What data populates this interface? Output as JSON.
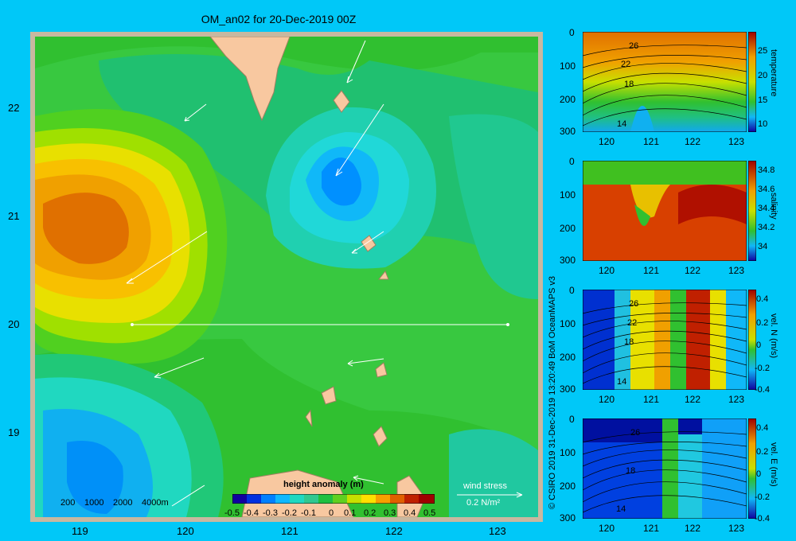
{
  "title": "OM_an02 for 20-Dec-2019 00Z",
  "map": {
    "lon_ticks": [
      "119",
      "120",
      "121",
      "122",
      "123"
    ],
    "lat_ticks": [
      "22",
      "21",
      "20",
      "19"
    ],
    "scale_labels": [
      "200",
      "1000",
      "2000",
      "4000m"
    ],
    "legend": {
      "title": "height anomaly (m)",
      "tick_labels": [
        "-0.5",
        "-0.4",
        "-0.3",
        "-0.2",
        "-0.1",
        "0",
        "0.1",
        "0.2",
        "0.3",
        "0.4",
        "0.5"
      ],
      "colors": [
        "#1000a0",
        "#0030e0",
        "#0080ff",
        "#10b8ff",
        "#20d8c0",
        "#30c890",
        "#20c040",
        "#60d020",
        "#c8e000",
        "#ffe000",
        "#f8a000",
        "#e06000",
        "#c02000",
        "#a00000"
      ]
    },
    "wind_label": "wind stress",
    "wind_scale": "0.2 N/m²"
  },
  "credit": "© CSIRO 2019   31-Dec-2019 13:20:49 BoM OceanMAPS v3",
  "panels": [
    {
      "label": "temperature",
      "y_ticks": [
        "0",
        "100",
        "200",
        "300"
      ],
      "x_ticks": [
        "120",
        "121",
        "122",
        "123"
      ],
      "cb_ticks": [
        "25",
        "20",
        "15",
        "10"
      ],
      "contour_labels": [
        "26",
        "22",
        "18",
        "14"
      ]
    },
    {
      "label": "salinity",
      "y_ticks": [
        "0",
        "100",
        "200",
        "300"
      ],
      "x_ticks": [
        "120",
        "121",
        "122",
        "123"
      ],
      "cb_ticks": [
        "34.8",
        "34.6",
        "34.4",
        "34.2",
        "34"
      ],
      "contour_labels": []
    },
    {
      "label": "vel. N (m/s)",
      "y_ticks": [
        "0",
        "100",
        "200",
        "300"
      ],
      "x_ticks": [
        "120",
        "121",
        "122",
        "123"
      ],
      "cb_ticks": [
        "0.4",
        "0.2",
        "0",
        "-0.2",
        "-0.4"
      ],
      "contour_labels": [
        "26",
        "22",
        "18",
        "14"
      ]
    },
    {
      "label": "vel. E (m/s)",
      "y_ticks": [
        "0",
        "100",
        "200",
        "300"
      ],
      "x_ticks": [
        "120",
        "121",
        "122",
        "123"
      ],
      "cb_ticks": [
        "0.4",
        "0.2",
        "0",
        "-0.2",
        "-0.4"
      ],
      "contour_labels": [
        "26",
        "18",
        "14"
      ]
    }
  ]
}
